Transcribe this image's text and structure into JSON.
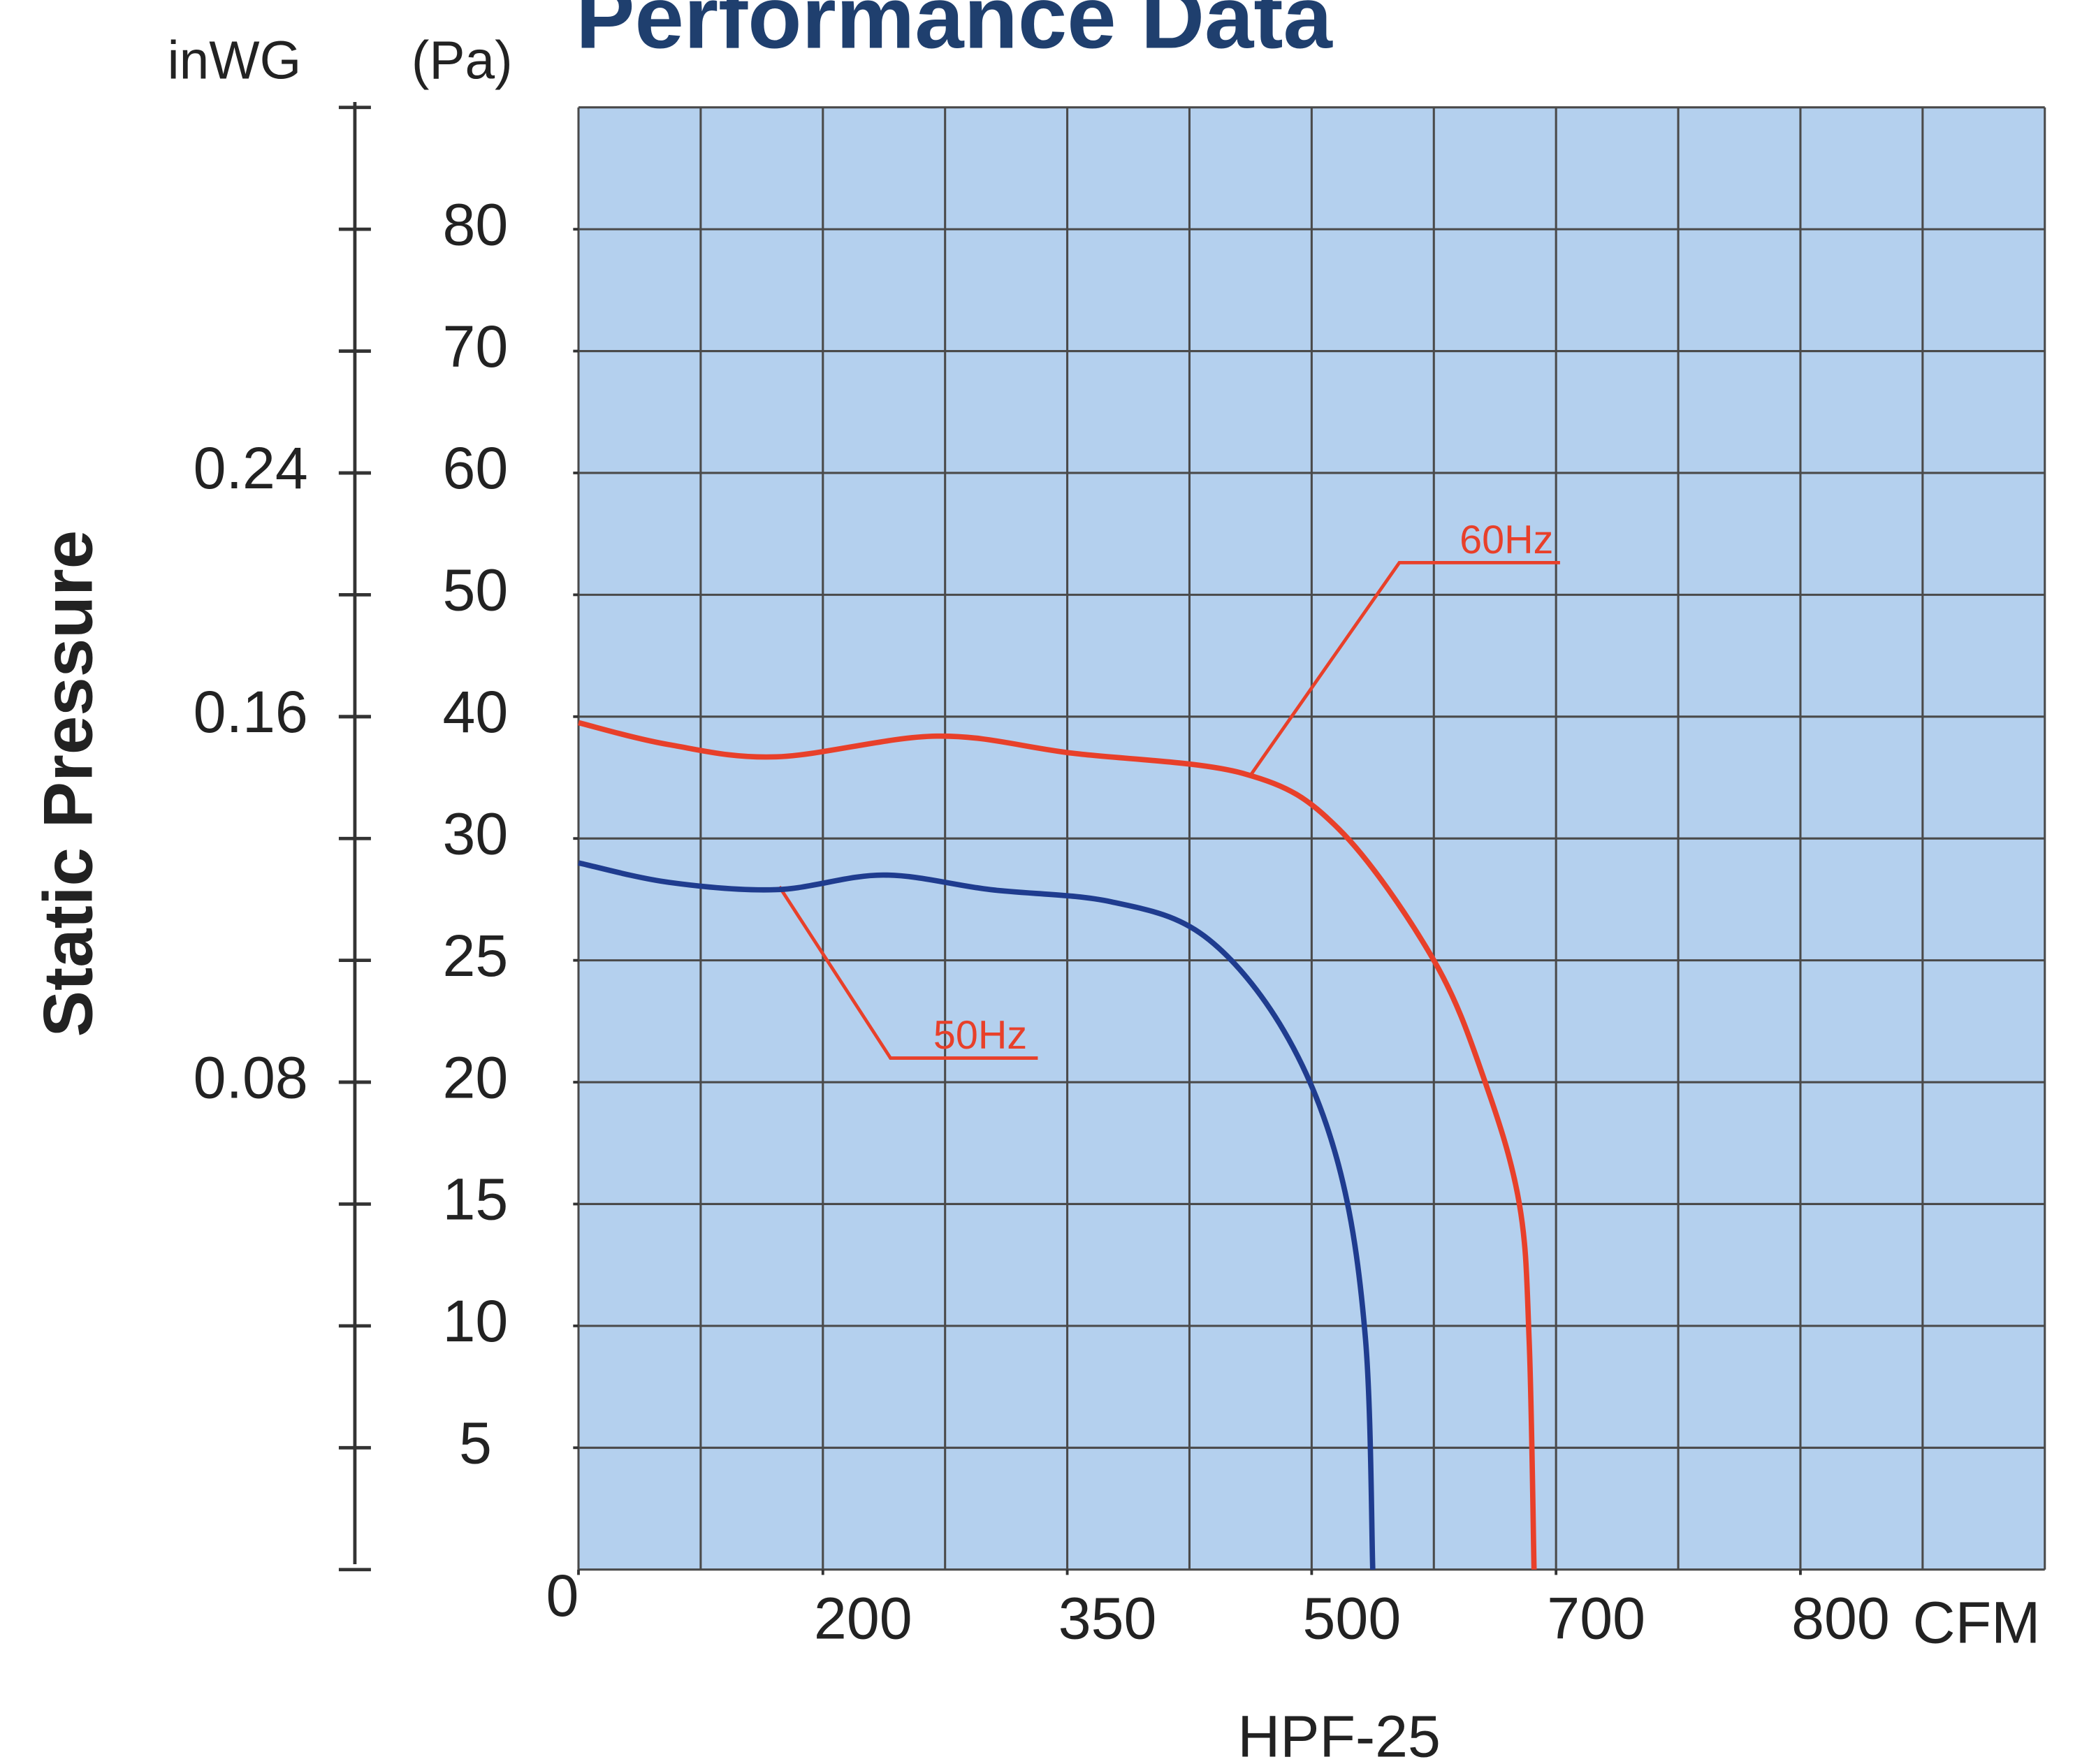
{
  "chart_data": {
    "type": "line",
    "title": "Performance Data",
    "y_label": "Static Pressure",
    "y_unit": "(Pa)",
    "y2_unit": "inWG",
    "x_unit": "CFM",
    "caption": "HPF-25",
    "xlim": [
      0,
      900
    ],
    "xticks": [
      0,
      200,
      350,
      500,
      700,
      800
    ],
    "ylim": [
      0,
      90
    ],
    "yticks": [
      5,
      10,
      15,
      20,
      25,
      30,
      40,
      50,
      60,
      70,
      80
    ],
    "y2lim": [
      0,
      0.36
    ],
    "y2ticks": [
      0.08,
      0.16,
      0.24
    ],
    "series": [
      {
        "name": "60Hz",
        "color": "#e8402a",
        "x": [
          0,
          74,
          162,
          270,
          353,
          459,
          522,
          600,
          642,
          670,
          678,
          682
        ],
        "values": [
          39.5,
          37.7,
          36.7,
          38.4,
          37,
          35.3,
          30.8,
          25,
          20,
          15,
          9.4,
          0
        ]
      },
      {
        "name": "50Hz",
        "color": "#1f3c8f",
        "x": [
          0,
          74,
          162,
          237,
          303,
          377,
          434,
          483,
          522,
          544,
          550
        ],
        "values": [
          29,
          28.2,
          27.9,
          28.5,
          27.9,
          27.4,
          26,
          22.1,
          16.6,
          9.5,
          0
        ]
      }
    ]
  }
}
